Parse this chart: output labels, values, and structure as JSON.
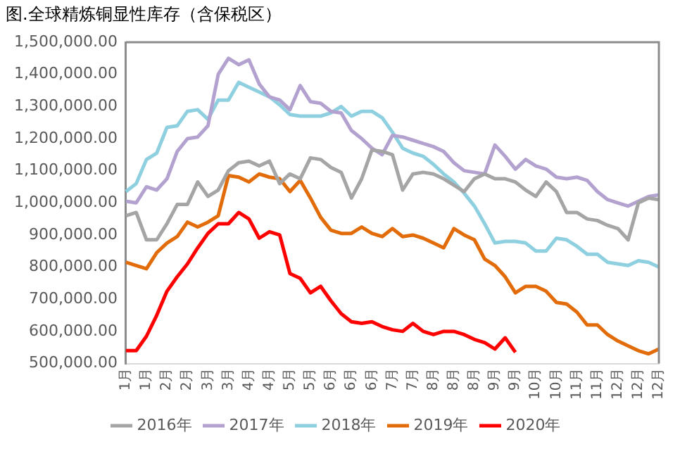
{
  "chart_data": {
    "type": "line",
    "title": "图.全球精炼铜显性库存（含保税区）",
    "categories": [
      "1月",
      null,
      "1月",
      null,
      "2月",
      null,
      "2月",
      null,
      "3月",
      null,
      "3月",
      null,
      "4月",
      null,
      "4月",
      null,
      "5月",
      null,
      "5月",
      null,
      "6月",
      null,
      "6月",
      null,
      "6月",
      null,
      "7月",
      null,
      "7月",
      null,
      "8月",
      null,
      "8月",
      null,
      "8月",
      null,
      "9月",
      null,
      "9月",
      null,
      "10月",
      null,
      "10月",
      null,
      "11月",
      null,
      "11月",
      null,
      "12月",
      null,
      "12月",
      null,
      "12月"
    ],
    "series": [
      {
        "name": "2016年",
        "color": "#a5a5a5",
        "values": [
          960000,
          970000,
          885000,
          885000,
          935000,
          995000,
          995000,
          1065000,
          1020000,
          1040000,
          1100000,
          1125000,
          1130000,
          1115000,
          1130000,
          1060000,
          1090000,
          1075000,
          1140000,
          1135000,
          1110000,
          1095000,
          1015000,
          1075000,
          1165000,
          1160000,
          1150000,
          1040000,
          1090000,
          1095000,
          1090000,
          1075000,
          1055000,
          1035000,
          1075000,
          1090000,
          1075000,
          1075000,
          1065000,
          1040000,
          1020000,
          1065000,
          1035000,
          970000,
          970000,
          950000,
          945000,
          930000,
          920000,
          885000,
          1000000,
          1015000,
          1010000
        ]
      },
      {
        "name": "2017年",
        "color": "#b3a2cf",
        "values": [
          1005000,
          1000000,
          1050000,
          1040000,
          1075000,
          1160000,
          1200000,
          1205000,
          1240000,
          1400000,
          1450000,
          1430000,
          1445000,
          1370000,
          1330000,
          1320000,
          1290000,
          1365000,
          1315000,
          1310000,
          1285000,
          1280000,
          1225000,
          1200000,
          1170000,
          1150000,
          1210000,
          1205000,
          1195000,
          1185000,
          1175000,
          1160000,
          1125000,
          1100000,
          1095000,
          1090000,
          1180000,
          1145000,
          1105000,
          1135000,
          1115000,
          1105000,
          1080000,
          1075000,
          1080000,
          1070000,
          1035000,
          1010000,
          1000000,
          990000,
          1005000,
          1020000,
          1025000
        ]
      },
      {
        "name": "2018年",
        "color": "#8fd0e0",
        "values": [
          1035000,
          1060000,
          1135000,
          1155000,
          1235000,
          1240000,
          1285000,
          1290000,
          1260000,
          1320000,
          1320000,
          1375000,
          1360000,
          1345000,
          1330000,
          1305000,
          1275000,
          1270000,
          1270000,
          1270000,
          1280000,
          1300000,
          1270000,
          1285000,
          1285000,
          1265000,
          1220000,
          1170000,
          1155000,
          1145000,
          1120000,
          1090000,
          1065000,
          1030000,
          990000,
          935000,
          875000,
          880000,
          880000,
          875000,
          850000,
          850000,
          890000,
          885000,
          865000,
          840000,
          840000,
          815000,
          810000,
          805000,
          820000,
          815000,
          800000
        ]
      },
      {
        "name": "2019年",
        "color": "#e36c0a",
        "values": [
          815000,
          805000,
          795000,
          845000,
          875000,
          895000,
          940000,
          925000,
          940000,
          960000,
          1085000,
          1080000,
          1065000,
          1090000,
          1080000,
          1075000,
          1035000,
          1070000,
          1015000,
          955000,
          915000,
          905000,
          905000,
          925000,
          905000,
          895000,
          920000,
          895000,
          900000,
          890000,
          875000,
          860000,
          920000,
          900000,
          885000,
          825000,
          805000,
          770000,
          720000,
          740000,
          740000,
          725000,
          690000,
          685000,
          660000,
          620000,
          620000,
          590000,
          570000,
          555000,
          540000,
          530000,
          545000
        ]
      },
      {
        "name": "2020年",
        "color": "#ff0000",
        "values": [
          540000,
          540000,
          585000,
          650000,
          725000,
          770000,
          810000,
          860000,
          905000,
          935000,
          935000,
          970000,
          950000,
          890000,
          910000,
          900000,
          780000,
          765000,
          720000,
          740000,
          695000,
          655000,
          630000,
          625000,
          630000,
          615000,
          605000,
          600000,
          625000,
          600000,
          590000,
          600000,
          600000,
          590000,
          575000,
          565000,
          545000,
          580000,
          535000,
          null,
          null,
          null,
          null,
          null,
          null,
          null,
          null,
          null,
          null,
          null,
          null,
          null,
          null
        ]
      }
    ],
    "ylim": [
      500000,
      1500000
    ],
    "yticks": [
      {
        "value": 500000,
        "label": "500,000.00"
      },
      {
        "value": 600000,
        "label": "600,000.00"
      },
      {
        "value": 700000,
        "label": "700,000.00"
      },
      {
        "value": 800000,
        "label": "800,000.00"
      },
      {
        "value": 900000,
        "label": "900,000.00"
      },
      {
        "value": 1000000,
        "label": "1,000,000.00"
      },
      {
        "value": 1100000,
        "label": "1,100,000.00"
      },
      {
        "value": 1200000,
        "label": "1,200,000.00"
      },
      {
        "value": 1300000,
        "label": "1,300,000.00"
      },
      {
        "value": 1400000,
        "label": "1,400,000.00"
      },
      {
        "value": 1500000,
        "label": "1,500,000.00"
      }
    ],
    "grid": false,
    "legend": "bottom",
    "marker": "none",
    "line_style": "solid"
  }
}
